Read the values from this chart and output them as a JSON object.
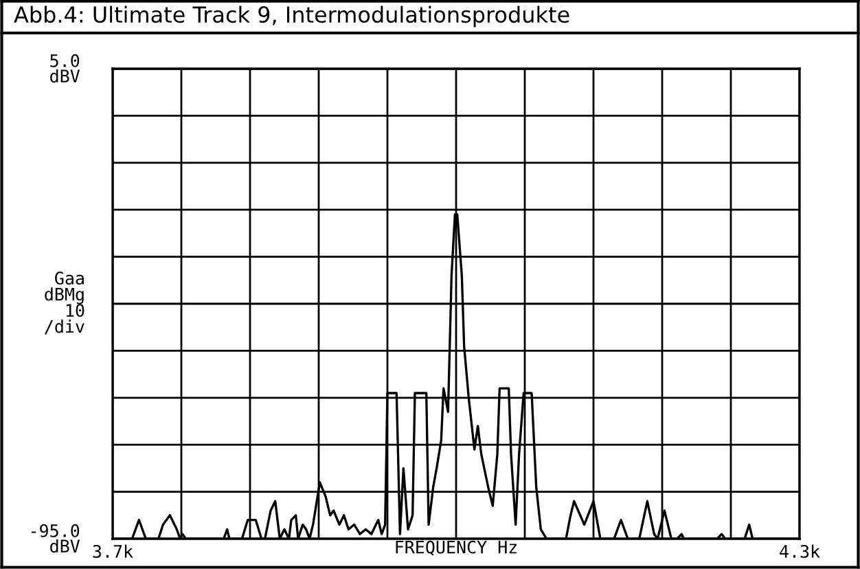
{
  "chart_data": {
    "type": "line",
    "title": "Abb.4: Ultimate Track 9, Intermodulationsprodukte",
    "xlabel": "FREQUENCY Hz",
    "ylabel": "Gaa\ndBMg\n10\n/div",
    "xlim": [
      3700,
      4300
    ],
    "ylim": [
      -95,
      5
    ],
    "xticks": [
      {
        "value": 3700,
        "label": "3.7k"
      },
      {
        "value": 3760,
        "label": null
      },
      {
        "value": 3820,
        "label": null
      },
      {
        "value": 3880,
        "label": null
      },
      {
        "value": 3940,
        "label": null
      },
      {
        "value": 4000,
        "label": null
      },
      {
        "value": 4060,
        "label": null
      },
      {
        "value": 4120,
        "label": null
      },
      {
        "value": 4180,
        "label": null
      },
      {
        "value": 4240,
        "label": null
      },
      {
        "value": 4300,
        "label": "4.3k"
      }
    ],
    "yticks": [
      {
        "value": 5,
        "label": "5.0\ndBV"
      },
      {
        "value": -5,
        "label": null
      },
      {
        "value": -15,
        "label": null
      },
      {
        "value": -25,
        "label": null
      },
      {
        "value": -35,
        "label": null
      },
      {
        "value": -45,
        "label": null
      },
      {
        "value": -55,
        "label": null
      },
      {
        "value": -65,
        "label": null
      },
      {
        "value": -75,
        "label": null
      },
      {
        "value": -85,
        "label": null
      },
      {
        "value": -95,
        "label": "-95.0\ndBV"
      }
    ],
    "grid": true,
    "series": [
      {
        "color": "#000000",
        "x": [
          3700,
          3717,
          3723,
          3729,
          3740,
          3744,
          3750,
          3756,
          3759,
          3761,
          3764,
          3797,
          3800,
          3802,
          3813,
          3818,
          3825,
          3830,
          3833,
          3838,
          3842,
          3846,
          3850,
          3854,
          3856,
          3860,
          3862,
          3866,
          3869,
          3872,
          3875,
          3881,
          3886,
          3890,
          3893,
          3898,
          3902,
          3906,
          3911,
          3916,
          3921,
          3926,
          3932,
          3935,
          3938,
          3940,
          3948,
          3951,
          3954,
          3958,
          3962,
          3964,
          3974,
          3976,
          3980,
          3983,
          3987,
          3989,
          3993,
          3996,
          3999,
          4001,
          4005,
          4007,
          4011,
          4016,
          4019,
          4022,
          4028,
          4032,
          4036,
          4038,
          4046,
          4048,
          4052,
          4055,
          4059,
          4066,
          4070,
          4074,
          4079,
          4096,
          4100,
          4103,
          4112,
          4120,
          4126,
          4132,
          4138,
          4144,
          4150,
          4160,
          4167,
          4173,
          4176,
          4182,
          4188,
          4193,
          4197,
          4199,
          4228,
          4232,
          4235,
          4252,
          4256,
          4259,
          4300
        ],
        "values": [
          -95,
          -95,
          -91,
          -95,
          -95,
          -92,
          -90,
          -93,
          -95,
          -94,
          -95,
          -95,
          -93,
          -95,
          -95,
          -91,
          -91,
          -95,
          -95,
          -89,
          -87,
          -95,
          -93,
          -95,
          -91,
          -90,
          -95,
          -92,
          -93,
          -95,
          -92,
          -83,
          -86,
          -90,
          -89,
          -92,
          -90,
          -93,
          -92,
          -94,
          -93,
          -94,
          -91,
          -94,
          -92,
          -64,
          -64,
          -94,
          -80,
          -93,
          -90,
          -64,
          -64,
          -92,
          -84,
          -80,
          -74,
          -63,
          -68,
          -39,
          -26,
          -26,
          -39,
          -54,
          -65,
          -76,
          -71,
          -77,
          -84,
          -88,
          -77,
          -63,
          -63,
          -77,
          -92,
          -77,
          -64,
          -64,
          -84,
          -93,
          -95,
          -95,
          -90,
          -87,
          -92,
          -87,
          -95,
          -95,
          -95,
          -91,
          -95,
          -95,
          -87,
          -94,
          -95,
          -89,
          -95,
          -95,
          -94,
          -95,
          -95,
          -94,
          -95,
          -95,
          -92,
          -95,
          -95
        ]
      }
    ]
  }
}
